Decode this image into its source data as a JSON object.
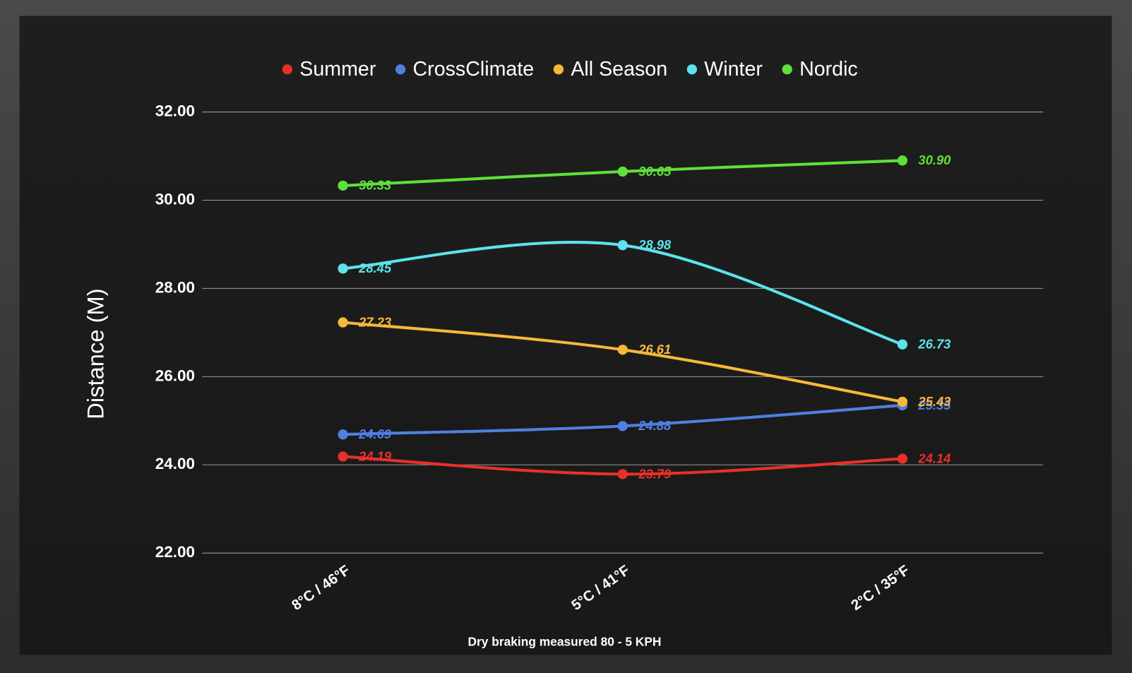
{
  "chart_data": {
    "type": "line",
    "x_label": "Dry braking measured 80 - 5 KPH",
    "y_label": "Distance (M)",
    "categories": [
      "8°C / 46°F",
      "5°C / 41°F",
      "2°C / 35°F"
    ],
    "series": [
      {
        "name": "Summer",
        "color": "#e8302a",
        "values": [
          24.19,
          23.79,
          24.14
        ],
        "value_labels": [
          "24.19",
          "23.79",
          "24.14"
        ]
      },
      {
        "name": "CrossClimate",
        "color": "#4f7fe0",
        "values": [
          24.69,
          24.88,
          25.35
        ],
        "value_labels": [
          "24.69",
          "24.88",
          "25.35"
        ]
      },
      {
        "name": "All Season",
        "color": "#f5b83a",
        "values": [
          27.23,
          26.61,
          25.43
        ],
        "value_labels": [
          "27.23",
          "26.61",
          "25.43"
        ]
      },
      {
        "name": "Winter",
        "color": "#5ce3ee",
        "values": [
          28.45,
          28.98,
          26.73
        ],
        "value_labels": [
          "28.45",
          "28.98",
          "26.73"
        ]
      },
      {
        "name": "Nordic",
        "color": "#5fe03a",
        "values": [
          30.33,
          30.65,
          30.9
        ],
        "value_labels": [
          "30.33",
          "30.65",
          "30.90"
        ]
      }
    ],
    "ylim": [
      22,
      32
    ],
    "yticks": [
      {
        "value": 22,
        "label": "22.00"
      },
      {
        "value": 24,
        "label": "24.00"
      },
      {
        "value": 26,
        "label": "26.00"
      },
      {
        "value": 28,
        "label": "28.00"
      },
      {
        "value": 30,
        "label": "30.00"
      },
      {
        "value": 32,
        "label": "32.00"
      }
    ],
    "grid": true,
    "legend": "top"
  }
}
